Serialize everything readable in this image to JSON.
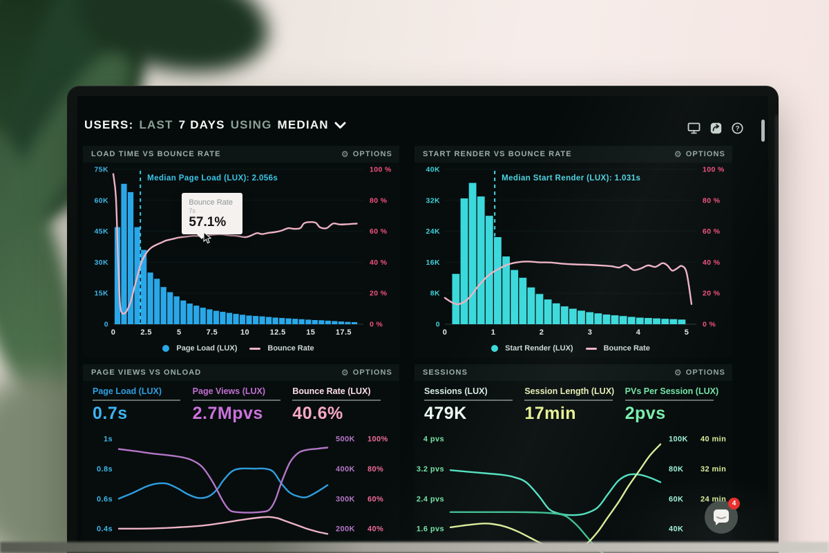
{
  "header": {
    "title_parts": [
      {
        "text": "USERS:",
        "strong": true
      },
      {
        "text": "LAST",
        "strong": false
      },
      {
        "text": "7 DAYS",
        "strong": true
      },
      {
        "text": "USING",
        "strong": false
      },
      {
        "text": "MEDIAN",
        "strong": true
      }
    ]
  },
  "icons": {
    "gear": "⚙"
  },
  "chat": {
    "badge": "4"
  },
  "chart_data": [
    {
      "type": "bar-line",
      "title": "LOAD TIME VS BOUNCE RATE",
      "options_label": "OPTIONS",
      "xlim": [
        0,
        19
      ],
      "x_ticks": [
        "0",
        "2.5",
        "5",
        "7.5",
        "10",
        "12.5",
        "15",
        "17.5"
      ],
      "x_tick_values": [
        0,
        2.5,
        5,
        7.5,
        10,
        12.5,
        15,
        17.5
      ],
      "y_left_ticks": [
        "75K",
        "60K",
        "45K",
        "30K",
        "15K",
        "0"
      ],
      "y_left_max": 75,
      "y_right_ticks": [
        "100 %",
        "80 %",
        "60 %",
        "40 %",
        "20 %",
        "0 %"
      ],
      "bar_start": 0.1,
      "bar_step": 0.5,
      "bar_values_k": [
        47,
        68,
        64,
        47,
        36,
        25,
        22,
        18,
        15.5,
        13.5,
        11.5,
        10,
        9,
        8,
        7.2,
        6.5,
        6,
        5.5,
        5,
        4.6,
        4.2,
        4,
        3.8,
        3.5,
        3.2,
        3,
        2.8,
        2.6,
        2.4,
        2.2,
        2,
        1.9,
        1.7,
        1.5,
        1.3,
        1.1,
        1
      ],
      "line_points_pct": [
        [
          0,
          97
        ],
        [
          0.2,
          82
        ],
        [
          0.35,
          45
        ],
        [
          0.5,
          14
        ],
        [
          0.65,
          7.5
        ],
        [
          0.85,
          7
        ],
        [
          1.05,
          9
        ],
        [
          1.3,
          14
        ],
        [
          1.55,
          22
        ],
        [
          1.8,
          30
        ],
        [
          2.06,
          38
        ],
        [
          2.3,
          43
        ],
        [
          2.6,
          47
        ],
        [
          2.9,
          49.5
        ],
        [
          3.2,
          51
        ],
        [
          3.6,
          52.5
        ],
        [
          4,
          54
        ],
        [
          4.5,
          55
        ],
        [
          5,
          56
        ],
        [
          5.5,
          56.5
        ],
        [
          6,
          57
        ],
        [
          6.5,
          57
        ],
        [
          7,
          57.1
        ],
        [
          7.6,
          57.8
        ],
        [
          8.2,
          58
        ],
        [
          8.8,
          57.4
        ],
        [
          9.4,
          57
        ],
        [
          10,
          56.2
        ],
        [
          10.4,
          57
        ],
        [
          10.9,
          58.8
        ],
        [
          11.3,
          58.2
        ],
        [
          11.8,
          59
        ],
        [
          12.3,
          59.5
        ],
        [
          12.8,
          60.5
        ],
        [
          13.3,
          62
        ],
        [
          13.7,
          61.6
        ],
        [
          14.2,
          62
        ],
        [
          14.5,
          65.2
        ],
        [
          15,
          66
        ],
        [
          15.4,
          65.4
        ],
        [
          15.7,
          62.6
        ],
        [
          16.2,
          62
        ],
        [
          16.7,
          65
        ],
        [
          17.2,
          64.4
        ],
        [
          17.8,
          64.6
        ],
        [
          18.5,
          65
        ]
      ],
      "median": {
        "x": 2.056,
        "label": "Median Page Load (LUX): 2.056s"
      },
      "tooltip": {
        "title": "Bounce Rate",
        "sub": "7s",
        "value": "57.1%",
        "x": 7
      },
      "legend": [
        {
          "label": "Page Load (LUX)",
          "type": "dot",
          "color": "#2aa7e8"
        },
        {
          "label": "Bounce Rate",
          "type": "line",
          "color": "#edb3c4"
        }
      ],
      "colors": {
        "bar": "#2aa7e8",
        "line": "#edb3c4",
        "left_axis": "#3fb6e8",
        "right_axis": "#f2527e",
        "median": "#3cc6e8",
        "x_axis": "#dfe9e4"
      }
    },
    {
      "type": "bar-line",
      "title": "START RENDER VS BOUNCE RATE",
      "options_label": "OPTIONS",
      "xlim": [
        0,
        5.2
      ],
      "x_ticks": [
        "0",
        "1",
        "2",
        "3",
        "4",
        "5"
      ],
      "x_tick_values": [
        0,
        1,
        2,
        3,
        4,
        5
      ],
      "y_left_ticks": [
        "40K",
        "32K",
        "24K",
        "16K",
        "8K",
        "0"
      ],
      "y_left_max": 40,
      "y_right_ticks": [
        "100 %",
        "80 %",
        "60 %",
        "40 %",
        "20 %",
        "0 %"
      ],
      "bar_start": 0.15,
      "bar_step": 0.173,
      "bar_values_k": [
        13,
        32.5,
        36.5,
        33,
        28,
        22.5,
        17.5,
        14,
        12,
        9.5,
        7.8,
        6.4,
        5.4,
        4.6,
        4,
        3.5,
        3.1,
        2.8,
        2.5,
        2.3,
        2.1,
        1.9,
        1.7,
        1.6,
        1.5,
        1.4,
        1.3,
        1.2
      ],
      "line_points_pct": [
        [
          0,
          17
        ],
        [
          0.15,
          14
        ],
        [
          0.3,
          13
        ],
        [
          0.5,
          17
        ],
        [
          0.7,
          25
        ],
        [
          0.9,
          31.5
        ],
        [
          1.1,
          35.5
        ],
        [
          1.3,
          38.5
        ],
        [
          1.5,
          40
        ],
        [
          1.7,
          40.5
        ],
        [
          1.95,
          40
        ],
        [
          2.2,
          39.8
        ],
        [
          2.45,
          39
        ],
        [
          2.7,
          38.6
        ],
        [
          2.95,
          38.4
        ],
        [
          3.2,
          38
        ],
        [
          3.45,
          37.4
        ],
        [
          3.6,
          36.6
        ],
        [
          3.75,
          38.2
        ],
        [
          3.9,
          35
        ],
        [
          4.05,
          36
        ],
        [
          4.2,
          38
        ],
        [
          4.35,
          37
        ],
        [
          4.5,
          39.4
        ],
        [
          4.6,
          38
        ],
        [
          4.7,
          34.6
        ],
        [
          4.8,
          36
        ],
        [
          4.9,
          37.6
        ],
        [
          5,
          33
        ],
        [
          5.1,
          13
        ]
      ],
      "median": {
        "x": 1.031,
        "label": "Median Start Render (LUX): 1.031s"
      },
      "legend": [
        {
          "label": "Start Render (LUX)",
          "type": "dot",
          "color": "#3bd9db"
        },
        {
          "label": "Bounce Rate",
          "type": "line",
          "color": "#edb3c4"
        }
      ],
      "colors": {
        "bar": "#3bd9db",
        "line": "#edb3c4",
        "left_axis": "#3fd2da",
        "right_axis": "#f2527e",
        "median": "#4fd4e2",
        "x_axis": "#dfe9e4"
      }
    },
    {
      "type": "multi-line",
      "title": "PAGE VIEWS VS ONLOAD",
      "options_label": "OPTIONS",
      "metrics": [
        {
          "label": "Page Load (LUX)",
          "value": "0.7s",
          "label_color": "#2f9fe0",
          "value_color": "#3db4f2"
        },
        {
          "label": "Page Views (LUX)",
          "value": "2.7Mpvs",
          "label_color": "#c16fd0",
          "value_color": "#cb72dc"
        },
        {
          "label": "Bounce Rate (LUX)",
          "value": "40.6%",
          "label_color": "#fbdce8",
          "value_color": "#f8a9c5"
        }
      ],
      "rows_frac": [
        0.08,
        0.335,
        0.59,
        0.845
      ],
      "axes": [
        {
          "side": "left",
          "labels": [
            "1s",
            "0.8s",
            "0.6s",
            "0.4s"
          ],
          "color": "#3fb6e8"
        },
        {
          "side": "right",
          "labels": [
            "500K",
            "400K",
            "300K",
            "200K"
          ],
          "color": "#b476c8"
        },
        {
          "side": "right2",
          "labels": [
            "100%",
            "80%",
            "60%",
            "40%"
          ],
          "color": "#ef6b96"
        }
      ],
      "series": [
        {
          "name": "page_load",
          "color": "#2f9fe0",
          "range": [
            0.279,
            1.063
          ],
          "points": [
            [
              0,
              0.6
            ],
            [
              0.07,
              0.64
            ],
            [
              0.13,
              0.68
            ],
            [
              0.18,
              0.7
            ],
            [
              0.23,
              0.7
            ],
            [
              0.28,
              0.67
            ],
            [
              0.33,
              0.63
            ],
            [
              0.38,
              0.605
            ],
            [
              0.43,
              0.615
            ],
            [
              0.47,
              0.66
            ],
            [
              0.5,
              0.72
            ],
            [
              0.54,
              0.78
            ],
            [
              0.58,
              0.8
            ],
            [
              0.65,
              0.8
            ],
            [
              0.7,
              0.8
            ],
            [
              0.74,
              0.78
            ],
            [
              0.78,
              0.7
            ],
            [
              0.82,
              0.64
            ],
            [
              0.86,
              0.615
            ],
            [
              0.9,
              0.61
            ],
            [
              0.95,
              0.645
            ],
            [
              1,
              0.69
            ]
          ]
        },
        {
          "name": "page_views",
          "color": "#b476c8",
          "range": [
            139,
            531
          ],
          "points": [
            [
              0,
              465
            ],
            [
              0.08,
              458
            ],
            [
              0.16,
              450
            ],
            [
              0.24,
              444
            ],
            [
              0.3,
              438
            ],
            [
              0.35,
              428
            ],
            [
              0.4,
              405
            ],
            [
              0.45,
              355
            ],
            [
              0.5,
              290
            ],
            [
              0.53,
              262
            ],
            [
              0.56,
              255
            ],
            [
              0.62,
              253
            ],
            [
              0.68,
              255
            ],
            [
              0.72,
              262
            ],
            [
              0.75,
              295
            ],
            [
              0.78,
              355
            ],
            [
              0.82,
              420
            ],
            [
              0.86,
              452
            ],
            [
              0.9,
              462
            ],
            [
              0.95,
              466
            ],
            [
              1,
              470
            ]
          ]
        },
        {
          "name": "bounce_rate",
          "color": "#edb3c4",
          "range": [
            27.9,
            106.3
          ],
          "points": [
            [
              0,
              40
            ],
            [
              0.1,
              40
            ],
            [
              0.2,
              40.3
            ],
            [
              0.3,
              41
            ],
            [
              0.4,
              42
            ],
            [
              0.48,
              43.5
            ],
            [
              0.55,
              45
            ],
            [
              0.62,
              46.5
            ],
            [
              0.68,
              47.5
            ],
            [
              0.72,
              47.8
            ],
            [
              0.76,
              47
            ],
            [
              0.8,
              45
            ],
            [
              0.85,
              42.5
            ],
            [
              0.9,
              40
            ],
            [
              0.95,
              38
            ],
            [
              1,
              36.5
            ]
          ]
        }
      ]
    },
    {
      "type": "multi-line",
      "title": "SESSIONS",
      "options_label": "OPTIONS",
      "metrics": [
        {
          "label": "Sessions (LUX)",
          "value": "479K",
          "label_color": "#d6eadf",
          "value_color": "#edfbf3"
        },
        {
          "label": "Session Length (LUX)",
          "value": "17min",
          "label_color": "#e4eeb4",
          "value_color": "#e7f292"
        },
        {
          "label": "PVs Per Session (LUX)",
          "value": "2pvs",
          "label_color": "#74e4a6",
          "value_color": "#79efad"
        }
      ],
      "rows_frac": [
        0.08,
        0.335,
        0.59,
        0.845
      ],
      "axes": [
        {
          "side": "left",
          "labels": [
            "4 pvs",
            "3.2 pvs",
            "2.4 pvs",
            "1.6 pvs"
          ],
          "color": "#74e4a6"
        },
        {
          "side": "right",
          "labels": [
            "100K",
            "80K",
            "60K",
            "40K"
          ],
          "color": "#9ff0d8"
        },
        {
          "side": "right2",
          "labels": [
            "40 min",
            "32 min",
            "24 min",
            ""
          ],
          "color": "#d8ee9a"
        }
      ],
      "series": [
        {
          "name": "sessions",
          "color": "#52e0c0",
          "range": [
            27.9,
            106.3
          ],
          "points": [
            [
              0,
              79
            ],
            [
              0.08,
              78
            ],
            [
              0.16,
              77
            ],
            [
              0.24,
              76
            ],
            [
              0.3,
              74.5
            ],
            [
              0.36,
              71
            ],
            [
              0.42,
              62
            ],
            [
              0.47,
              53
            ],
            [
              0.52,
              50
            ],
            [
              0.58,
              49
            ],
            [
              0.64,
              50
            ],
            [
              0.7,
              54
            ],
            [
              0.75,
              63
            ],
            [
              0.8,
              72
            ],
            [
              0.85,
              76
            ],
            [
              0.9,
              76
            ],
            [
              0.95,
              74
            ],
            [
              1,
              71
            ]
          ]
        },
        {
          "name": "pvs_per_session",
          "color": "#3dbf8f",
          "range": [
            1.114,
            4.251
          ],
          "points": [
            [
              0,
              2.04
            ],
            [
              0.15,
              2.04
            ],
            [
              0.3,
              2.04
            ],
            [
              0.42,
              2.03
            ],
            [
              0.5,
              2
            ],
            [
              0.55,
              1.93
            ],
            [
              0.6,
              1.7
            ],
            [
              0.65,
              1.38
            ],
            [
              0.7,
              1.05
            ],
            [
              0.74,
              0.9
            ]
          ]
        },
        {
          "name": "session_length",
          "color": "#d8ee9a",
          "range": [
            11.1,
            42.5
          ],
          "points": [
            [
              0,
              16.3
            ],
            [
              0.08,
              16.9
            ],
            [
              0.15,
              17.3
            ],
            [
              0.2,
              17.2
            ],
            [
              0.26,
              16.5
            ],
            [
              0.32,
              15.2
            ],
            [
              0.38,
              13.5
            ],
            [
              0.44,
              11.8
            ],
            [
              0.5,
              10.5
            ],
            [
              0.56,
              10.2
            ],
            [
              0.6,
              10.5
            ],
            [
              0.65,
              12
            ],
            [
              0.7,
              15
            ],
            [
              0.75,
              19
            ],
            [
              0.8,
              23
            ],
            [
              0.85,
              27.5
            ],
            [
              0.9,
              31.5
            ],
            [
              0.95,
              35.5
            ],
            [
              1,
              38.5
            ]
          ]
        }
      ]
    }
  ]
}
